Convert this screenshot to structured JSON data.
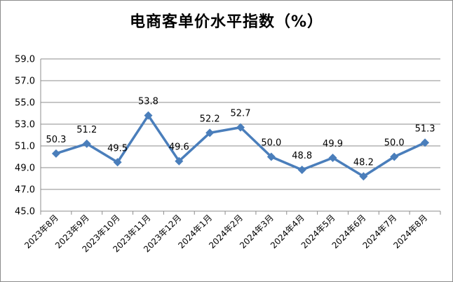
{
  "chart_data": {
    "type": "line",
    "title": "电商客单价水平指数（%）",
    "categories": [
      "2023年8月",
      "2023年9月",
      "2023年10月",
      "2023年11月",
      "2023年12月",
      "2024年1月",
      "2024年2月",
      "2024年3月",
      "2024年4月",
      "2024年5月",
      "2024年6月",
      "2024年7月",
      "2024年8月"
    ],
    "series": [
      {
        "values": [
          50.3,
          51.2,
          49.5,
          53.8,
          49.6,
          52.2,
          52.7,
          50.0,
          48.8,
          49.9,
          48.2,
          50.0,
          51.3
        ]
      }
    ],
    "ylim": [
      45.0,
      59.0
    ],
    "yticks": [
      "45.0",
      "47.0",
      "49.0",
      "51.0",
      "53.0",
      "55.0",
      "57.0",
      "59.0"
    ],
    "grid": true,
    "line_color": "#4a7ebb"
  }
}
